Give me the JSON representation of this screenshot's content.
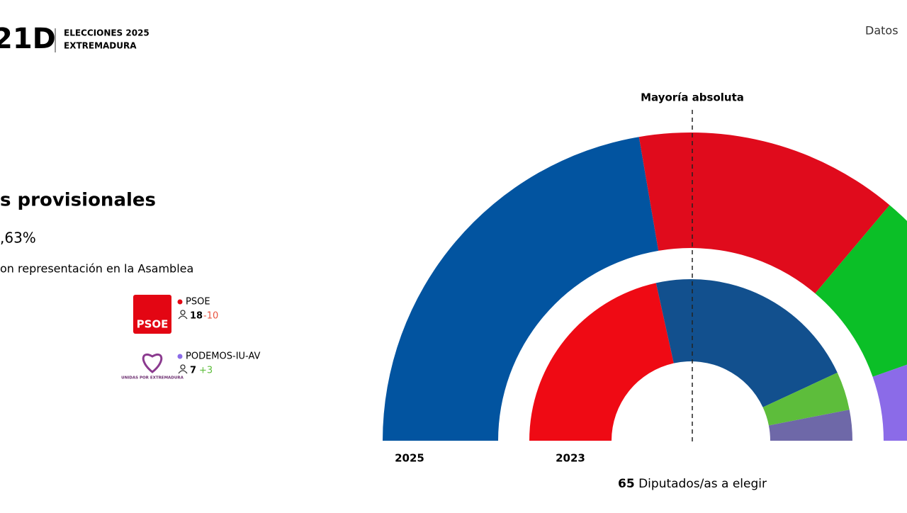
{
  "header": {
    "logo": "21D",
    "line1": "ELECCIONES 2025",
    "line2": "EXTREMADURA",
    "link": "Datos"
  },
  "summary": {
    "title": "s provisionales",
    "turnout": ",63%",
    "subtitle": "on representación en la Asamblea"
  },
  "legend": [
    {
      "logo": "PSOE",
      "name": "PSOE",
      "color": "#e30613",
      "seats": 18,
      "change": "-10",
      "change_color": "#e8533f"
    },
    {
      "logo": "UNIDAS POR EXTREMADURA",
      "name": "PODEMOS-IU-AV",
      "color": "#8b6be8",
      "seats": 7,
      "change": "+3",
      "change_color": "#5dbd3b"
    }
  ],
  "chart_data": {
    "type": "hemicycle",
    "annotation": "Mayoría absoluta",
    "total": 65,
    "total_label": "Diputados/as a elegir",
    "rings": [
      {
        "label": "2025",
        "colors": [
          "#0254a0",
          "#e00b1c",
          "#0bbf27",
          "#8b6be8"
        ],
        "values": [
          29,
          18,
          11,
          7
        ]
      },
      {
        "label": "2023",
        "colors": [
          "#ef0a14",
          "#12508e",
          "#5dbd3b",
          "#6e68a8"
        ],
        "values": [
          28,
          28,
          5,
          4
        ]
      }
    ]
  }
}
